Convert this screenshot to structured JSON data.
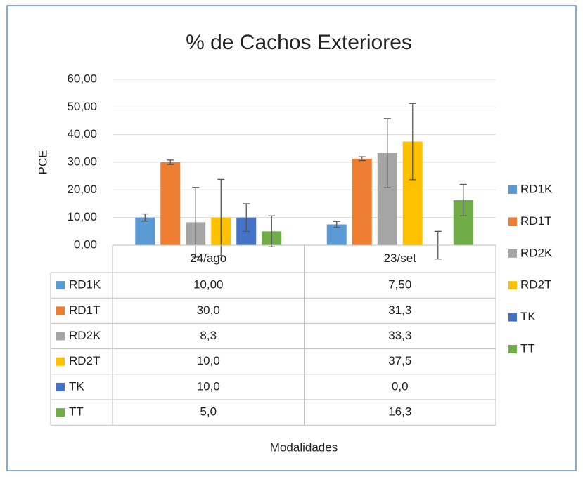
{
  "chart_data": {
    "type": "bar",
    "title": "% de Cachos Exteriores",
    "y_label": "PCE",
    "x_label": "Modalidades",
    "categories": [
      "24/ago",
      "23/set"
    ],
    "series": [
      {
        "name": "RD1K",
        "color": "#5b9bd5",
        "values": [
          10,
          7.5
        ],
        "value_labels": [
          "10,00",
          "7,50"
        ],
        "errors": [
          1.3,
          1.1
        ]
      },
      {
        "name": "RD1T",
        "color": "#ed7d31",
        "values": [
          30,
          31.3
        ],
        "value_labels": [
          "30,0",
          "31,3"
        ],
        "errors": [
          0.8,
          0.7
        ]
      },
      {
        "name": "RD2K",
        "color": "#a5a5a5",
        "values": [
          8.3,
          33.3
        ],
        "value_labels": [
          "8,3",
          "33,3"
        ],
        "errors": [
          12.6,
          12.5
        ]
      },
      {
        "name": "RD2T",
        "color": "#ffc000",
        "values": [
          10,
          37.5
        ],
        "value_labels": [
          "10,0",
          "37,5"
        ],
        "errors": [
          13.8,
          13.8
        ]
      },
      {
        "name": "TK",
        "color": "#4472c4",
        "values": [
          10,
          0
        ],
        "value_labels": [
          "10,0",
          "0,0"
        ],
        "errors": [
          5,
          5
        ]
      },
      {
        "name": "TT",
        "color": "#70ad47",
        "values": [
          5,
          16.3
        ],
        "value_labels": [
          "5,0",
          "16,3"
        ],
        "errors": [
          5.6,
          5.7
        ]
      }
    ],
    "ylim": [
      0,
      60
    ],
    "yticks": [
      {
        "value": 0,
        "label": "0,00"
      },
      {
        "value": 10,
        "label": "10,00"
      },
      {
        "value": 20,
        "label": "20,00"
      },
      {
        "value": 30,
        "label": "30,00"
      },
      {
        "value": 40,
        "label": "40,00"
      },
      {
        "value": 50,
        "label": "50,00"
      },
      {
        "value": 60,
        "label": "60,00"
      }
    ],
    "grid": true,
    "legend": "right",
    "data_table": true
  }
}
